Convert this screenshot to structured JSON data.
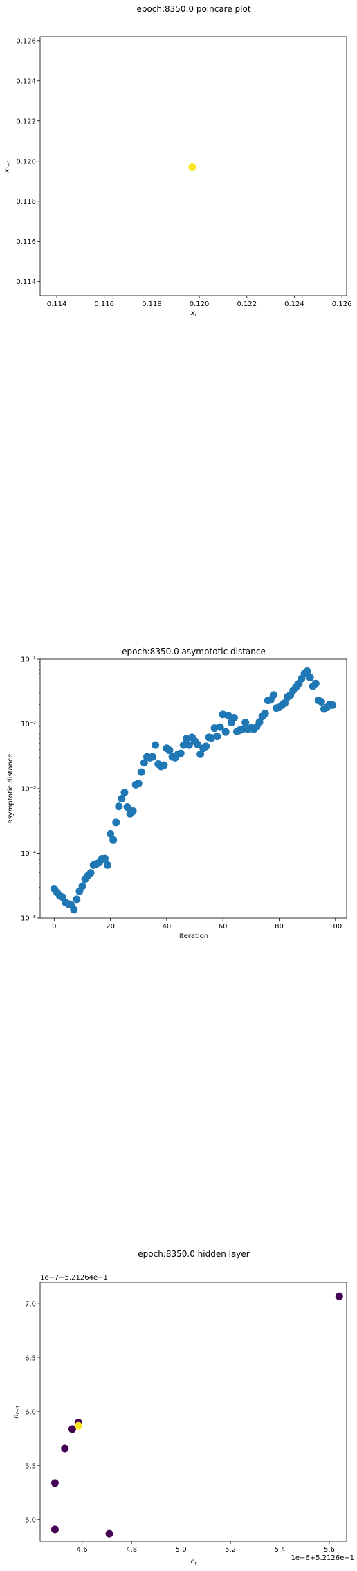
{
  "chart_data": [
    {
      "type": "scatter",
      "title": "epoch:8350.0 poincare plot",
      "xlabel": "x_t",
      "ylabel": "x_{t-1}",
      "xlim": [
        0.1133,
        0.1262
      ],
      "ylim": [
        0.1133,
        0.1262
      ],
      "xticks": [
        0.114,
        0.116,
        0.118,
        0.12,
        0.122,
        0.124,
        0.126
      ],
      "xtick_labels": [
        "0.114",
        "0.116",
        "0.118",
        "0.120",
        "0.122",
        "0.124",
        "0.126"
      ],
      "yticks": [
        0.114,
        0.116,
        0.118,
        0.12,
        0.122,
        0.124,
        0.126
      ],
      "ytick_labels": [
        "0.114",
        "0.116",
        "0.118",
        "0.120",
        "0.122",
        "0.124",
        "0.126"
      ],
      "points": [
        {
          "x": 0.1197,
          "y": 0.1197,
          "color": "#fde725"
        }
      ]
    },
    {
      "type": "scatter",
      "title": "epoch:8350.0 asymptotic distance",
      "xlabel": "iteration",
      "ylabel": "asymptotic distance",
      "xscale": "linear",
      "yscale": "log",
      "xlim": [
        -5,
        104
      ],
      "ylim": [
        1e-05,
        0.1
      ],
      "xticks": [
        0,
        20,
        40,
        60,
        80,
        100
      ],
      "xtick_labels": [
        "0",
        "20",
        "40",
        "60",
        "80",
        "100"
      ],
      "yticks": [
        1e-05,
        0.0001,
        0.001,
        0.01,
        0.1
      ],
      "ytick_labels": [
        "10⁻⁵",
        "10⁻⁴",
        "10⁻³",
        "10⁻²",
        "10⁻¹"
      ],
      "color": "#1f77b4",
      "x": [
        0,
        1,
        2,
        3,
        4,
        5,
        6,
        7,
        8,
        9,
        10,
        11,
        12,
        13,
        14,
        15,
        16,
        17,
        18,
        19,
        20,
        21,
        22,
        23,
        24,
        25,
        26,
        27,
        28,
        29,
        30,
        31,
        32,
        33,
        34,
        35,
        36,
        37,
        38,
        39,
        40,
        41,
        42,
        43,
        44,
        45,
        46,
        47,
        48,
        49,
        50,
        51,
        52,
        53,
        54,
        55,
        56,
        57,
        58,
        59,
        60,
        61,
        62,
        63,
        64,
        65,
        66,
        67,
        68,
        69,
        70,
        71,
        72,
        73,
        74,
        75,
        76,
        77,
        78,
        79,
        80,
        81,
        82,
        83,
        84,
        85,
        86,
        87,
        88,
        89,
        90,
        91,
        92,
        93,
        94,
        95,
        96,
        97,
        98,
        99
      ],
      "values": [
        2.85e-05,
        2.5e-05,
        2.2e-05,
        2.1e-05,
        1.75e-05,
        1.65e-05,
        1.6e-05,
        1.35e-05,
        1.95e-05,
        2.6e-05,
        3.1e-05,
        4e-05,
        4.5e-05,
        5e-05,
        6.6e-05,
        6.9e-05,
        7.2e-05,
        8.2e-05,
        8.3e-05,
        6.6e-05,
        0.0002,
        0.00016,
        0.0003,
        0.00053,
        0.0007,
        0.00087,
        0.00052,
        0.00041,
        0.00045,
        0.00115,
        0.0012,
        0.0018,
        0.0025,
        0.0031,
        0.003,
        0.0031,
        0.0047,
        0.0024,
        0.0022,
        0.0023,
        0.0042,
        0.0039,
        0.0031,
        0.003,
        0.0034,
        0.0035,
        0.0047,
        0.0059,
        0.0047,
        0.0062,
        0.0054,
        0.0048,
        0.0034,
        0.0042,
        0.0045,
        0.0062,
        0.0061,
        0.0086,
        0.0064,
        0.0089,
        0.014,
        0.0075,
        0.0133,
        0.0105,
        0.0125,
        0.0076,
        0.008,
        0.0083,
        0.0105,
        0.0082,
        0.0087,
        0.0083,
        0.009,
        0.0107,
        0.013,
        0.0145,
        0.023,
        0.0235,
        0.028,
        0.0175,
        0.018,
        0.0195,
        0.021,
        0.026,
        0.028,
        0.033,
        0.037,
        0.042,
        0.05,
        0.06,
        0.065,
        0.052,
        0.038,
        0.042,
        0.023,
        0.022,
        0.017,
        0.018,
        0.02,
        0.0195
      ]
    },
    {
      "type": "scatter",
      "title": "epoch:8350.0 hidden layer",
      "xlabel": "h_t",
      "ylabel": "h_{t-1}",
      "x_offset_label": "1e−6+5.2126e−1",
      "y_offset_label": "1e−7+5.21264e−1",
      "xlim": [
        4.43,
        5.67
      ],
      "ylim": [
        4.8,
        7.2
      ],
      "xticks": [
        4.6,
        4.8,
        5.0,
        5.2,
        5.4,
        5.6
      ],
      "xtick_labels": [
        "4.6",
        "4.8",
        "5.0",
        "5.2",
        "5.4",
        "5.6"
      ],
      "yticks": [
        5.0,
        5.5,
        6.0,
        6.5,
        7.0
      ],
      "ytick_labels": [
        "5.0",
        "5.5",
        "6.0",
        "6.5",
        "7.0"
      ],
      "points": [
        {
          "x": 5.64,
          "y": 7.07,
          "color": "#440154"
        },
        {
          "x": 4.585,
          "y": 5.9,
          "color": "#440154"
        },
        {
          "x": 4.56,
          "y": 5.84,
          "color": "#440154"
        },
        {
          "x": 4.53,
          "y": 5.66,
          "color": "#440154"
        },
        {
          "x": 4.49,
          "y": 5.34,
          "color": "#440154"
        },
        {
          "x": 4.49,
          "y": 4.91,
          "color": "#440154"
        },
        {
          "x": 4.71,
          "y": 4.87,
          "color": "#440154"
        },
        {
          "x": 4.585,
          "y": 5.87,
          "color": "#fde725"
        }
      ]
    }
  ]
}
